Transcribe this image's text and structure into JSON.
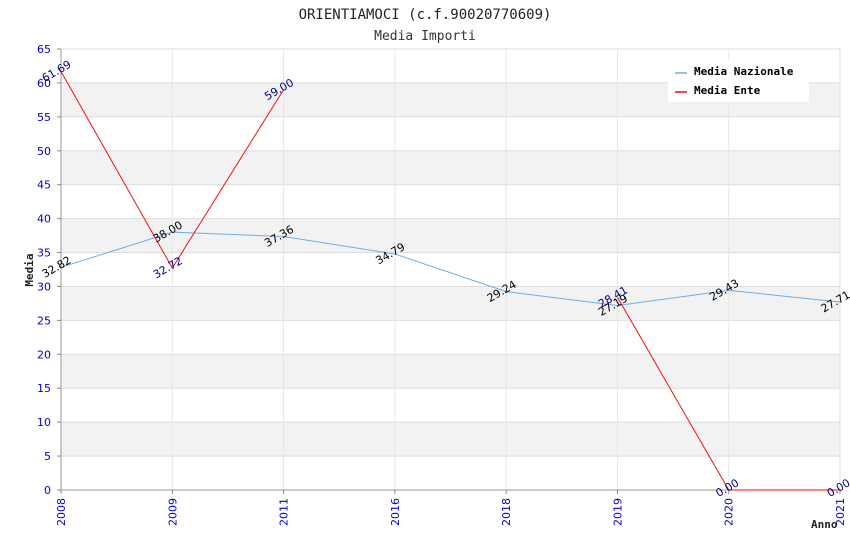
{
  "chart_data": {
    "type": "line",
    "title": "ORIENTIAMOCI (c.f.90020770609)",
    "subtitle": "Media Importi",
    "xlabel": "Anno",
    "ylabel": "Media",
    "categories": [
      "2008",
      "2009",
      "2011",
      "2016",
      "2018",
      "2019",
      "2020",
      "2021"
    ],
    "ylim": [
      0,
      65
    ],
    "ytick_step": 5,
    "grid": true,
    "legend_position": "top-right",
    "series": [
      {
        "name": "Media Nazionale",
        "color": "#6aaee8",
        "values": [
          32.82,
          38.0,
          37.36,
          34.79,
          29.24,
          27.19,
          29.43,
          27.71
        ],
        "labels": [
          "32.82",
          "38.00",
          "37.36",
          "34.79",
          "29.24",
          "27.19",
          "29.43",
          "27.71"
        ]
      },
      {
        "name": "Media Ente",
        "color": "#ee1111",
        "values": [
          61.69,
          32.72,
          59.0,
          null,
          null,
          28.41,
          0.0,
          0.0
        ],
        "labels": [
          "61.69",
          "32.72",
          "59.00",
          null,
          null,
          "28.41",
          "0.00",
          "0.00"
        ]
      }
    ]
  }
}
